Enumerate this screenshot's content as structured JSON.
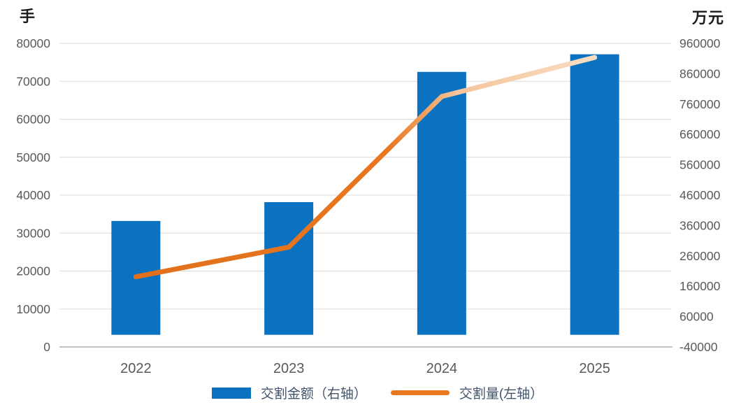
{
  "chart_data": {
    "type": "combo-bar-line",
    "categories": [
      "2022",
      "2023",
      "2024",
      "2025"
    ],
    "series": [
      {
        "name": "交割金额（右轴）",
        "type": "bar",
        "axis": "right",
        "color": "#0B72C1",
        "values": [
          375000,
          437000,
          866000,
          924000
        ]
      },
      {
        "name": "交割量(左轴）",
        "type": "line",
        "axis": "left",
        "gradient": [
          "#E2701B",
          "#E87720",
          "#F5C59B",
          "#F9DDC3"
        ],
        "legend_swatch_color": "#E8771E",
        "values": [
          18500,
          26300,
          66000,
          76300
        ]
      }
    ],
    "left_axis": {
      "title": "手",
      "min": 0,
      "max": 80000,
      "ticks": [
        80000,
        70000,
        60000,
        50000,
        40000,
        30000,
        20000,
        10000,
        0
      ]
    },
    "right_axis": {
      "title": "万元",
      "min": -40000,
      "max": 960000,
      "ticks": [
        960000,
        860000,
        760000,
        660000,
        560000,
        460000,
        360000,
        260000,
        160000,
        60000,
        -40000
      ]
    },
    "grid": true,
    "legend_position": "bottom"
  },
  "styles": {
    "background": "#FFFFFF",
    "grid_color": "#DCDCDC",
    "axis_line_color": "#ADADAD",
    "tick_label_color": "#595959",
    "category_label_color": "#595959",
    "axis_title_color": "#1A1A1A",
    "legend_text_color": "#44546A"
  }
}
